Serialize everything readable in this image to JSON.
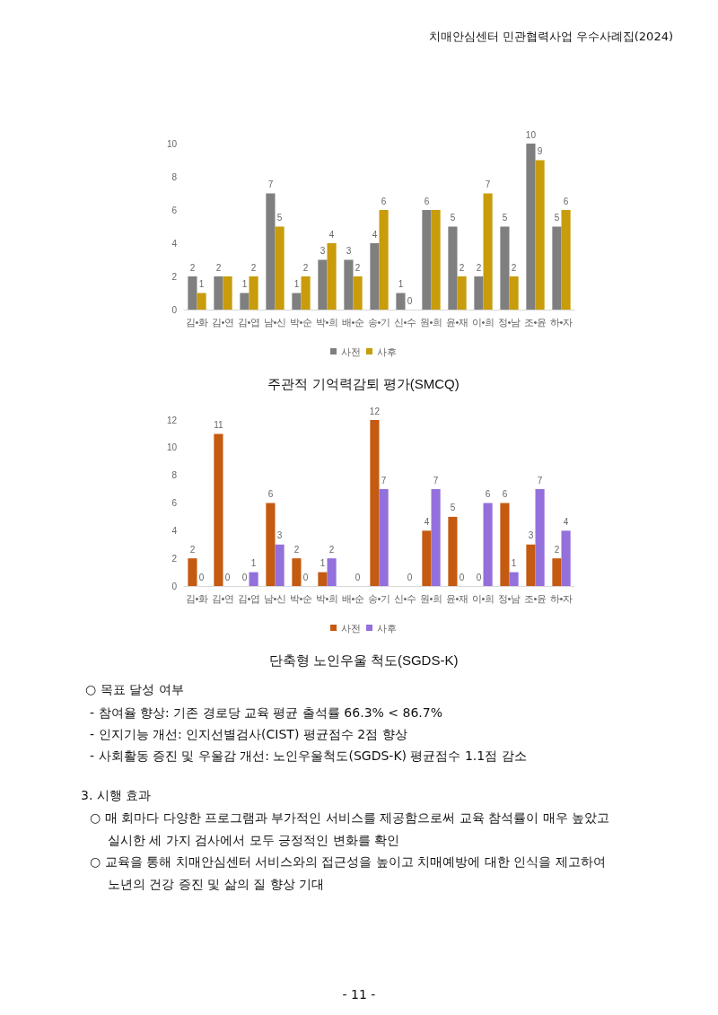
{
  "chart_data": [
    {
      "type": "bar",
      "title": "주관적 기억력감퇴 평가(SMCQ)",
      "categories": [
        "김•화",
        "김•연",
        "김•엽",
        "남•신",
        "박•순",
        "박•희",
        "배•순",
        "송•기",
        "신•수",
        "원•희",
        "윤•재",
        "이•희",
        "정•남",
        "조•윤",
        "하•자"
      ],
      "series": [
        {
          "name": "사전",
          "color": "#7f7f7f",
          "values": [
            2,
            2,
            1,
            7,
            1,
            3,
            3,
            4,
            1,
            6,
            5,
            2,
            5,
            10,
            5
          ],
          "value_labels": [
            "2",
            "2",
            "1",
            "7",
            "1",
            "3",
            "3",
            "4",
            "1",
            "6",
            "5",
            "2",
            "5",
            "10",
            "5"
          ]
        },
        {
          "name": "사후",
          "color": "#c89c0b",
          "values": [
            1,
            2,
            2,
            5,
            2,
            4,
            2,
            6,
            0,
            6,
            2,
            7,
            2,
            9,
            6
          ],
          "value_labels": [
            "1",
            null,
            "2",
            "5",
            "2",
            "4",
            "2",
            "6",
            "0",
            null,
            "2",
            "7",
            "2",
            "9",
            "6"
          ]
        }
      ],
      "ylim": [
        0,
        10
      ],
      "yticks": [
        0,
        2,
        4,
        6,
        8,
        10
      ],
      "grid": false,
      "legend": "bottom",
      "annotations": [
        "치매안심센터  민관협력사업  우수사례집(2024)"
      ]
    },
    {
      "type": "bar",
      "title": "단축형 노인우울 척도(SGDS-K)",
      "categories": [
        "김•화",
        "김•연",
        "김•엽",
        "남•신",
        "박•순",
        "박•희",
        "배•순",
        "송•기",
        "신•수",
        "원•희",
        "윤•재",
        "이•희",
        "정•남",
        "조•윤",
        "하•자"
      ],
      "series": [
        {
          "name": "사전",
          "color": "#c55a11",
          "values": [
            2,
            11,
            0,
            6,
            2,
            1,
            null,
            12,
            null,
            4,
            5,
            0,
            6,
            3,
            2
          ]
        },
        {
          "name": "사후",
          "color": "#9370db",
          "values": [
            0,
            0,
            1,
            3,
            0,
            2,
            0,
            7,
            0,
            7,
            0,
            6,
            1,
            7,
            4
          ]
        }
      ],
      "ylim": [
        0,
        12
      ],
      "yticks": [
        0,
        2,
        4,
        6,
        8,
        10,
        12
      ],
      "grid": false,
      "legend": "bottom",
      "data_labels": true,
      "annotations": [
        "○  목표 달성 여부",
        "- 참여율 향상: 기존 경로당 교육 평균 출석률 66.3% < 86.7%",
        "- 인지기능 개선: 인지선별검사(CIST) 평균점수 2점 향상",
        "- 사회활동 증진 및 우울감 개선: 노인우울척도(SGDS-K) 평균점수 1.1점 감소",
        "3. 시행 효과",
        "○  매 회마다 다양한 프로그램과 부가적인 서비스를 제공함으로써 교육 참석률이 매우 높았고",
        "실시한 세 가지 검사에서 모두 긍정적인 변화를 확인",
        "○  교육을 통해 치매안심센터 서비스와의 접근성을 높이고 치매예방에 대한 인식을 제고하여",
        "노년의 건강 증진 및 삶의 질 향상 기대",
        "- 11 -"
      ]
    }
  ]
}
